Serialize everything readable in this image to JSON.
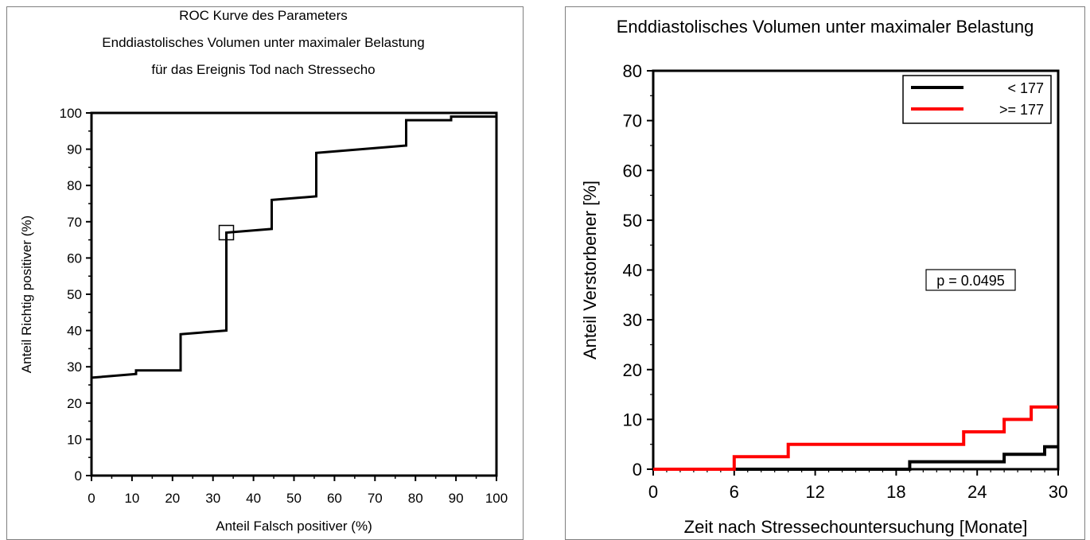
{
  "chart_data": [
    {
      "type": "line",
      "title_lines": [
        "ROC Kurve des Parameters",
        "Enddiastolisches Volumen unter maximaler Belastung",
        "für das Ereignis Tod nach Stressecho"
      ],
      "xlabel": "Anteil Falsch positiver (%)",
      "ylabel": "Anteil Richtig positiver (%)",
      "xlim": [
        0,
        100
      ],
      "ylim": [
        0,
        100
      ],
      "xticks": [
        "0",
        "10",
        "20",
        "30",
        "40",
        "50",
        "60",
        "70",
        "80",
        "90",
        "100"
      ],
      "yticks": [
        "0",
        "10",
        "20",
        "30",
        "40",
        "50",
        "60",
        "70",
        "80",
        "90",
        "100"
      ],
      "grid": false,
      "series": [
        {
          "color": "#000000",
          "x": [
            0,
            0,
            0,
            11,
            11,
            22,
            22,
            33.3,
            33.3,
            44.5,
            44.5,
            55.5,
            55.5,
            77.7,
            77.7,
            88.8,
            88.8,
            100,
            100
          ],
          "y": [
            2,
            27,
            27,
            28,
            29,
            29,
            39,
            40,
            67,
            68,
            76,
            77,
            89,
            91,
            98,
            98,
            99,
            99,
            100
          ]
        }
      ],
      "marker": {
        "x": 33.3,
        "y": 67,
        "shape": "square"
      }
    },
    {
      "type": "line",
      "title": "Enddiastolisches   Volumen unter maximaler Belastung",
      "xlabel": "Zeit nach Stressechountersuchung [Monate]",
      "ylabel": "Anteil   Verstorbener   [%]",
      "xlim": [
        0,
        30
      ],
      "ylim": [
        0,
        80
      ],
      "xticks": [
        "0",
        "6",
        "12",
        "18",
        "24",
        "30"
      ],
      "yticks": [
        "0",
        "10",
        "20",
        "30",
        "40",
        "50",
        "60",
        "70",
        "80"
      ],
      "grid": false,
      "legend_position": "top-right",
      "annotation": "p  =  0.0495",
      "series": [
        {
          "name": "<  177",
          "color": "#000000",
          "x": [
            0,
            19,
            19,
            26,
            26,
            29,
            29,
            30
          ],
          "y": [
            0,
            0,
            1.5,
            1.5,
            3,
            3,
            4.5,
            4.5
          ]
        },
        {
          "name": ">=  177",
          "color": "#ff0000",
          "x": [
            0,
            6,
            6,
            10,
            10,
            23,
            23,
            26,
            26,
            28,
            28,
            30
          ],
          "y": [
            0,
            0,
            2.5,
            2.5,
            5,
            5,
            7.5,
            7.5,
            10,
            10,
            12.5,
            12.5
          ]
        }
      ]
    }
  ]
}
